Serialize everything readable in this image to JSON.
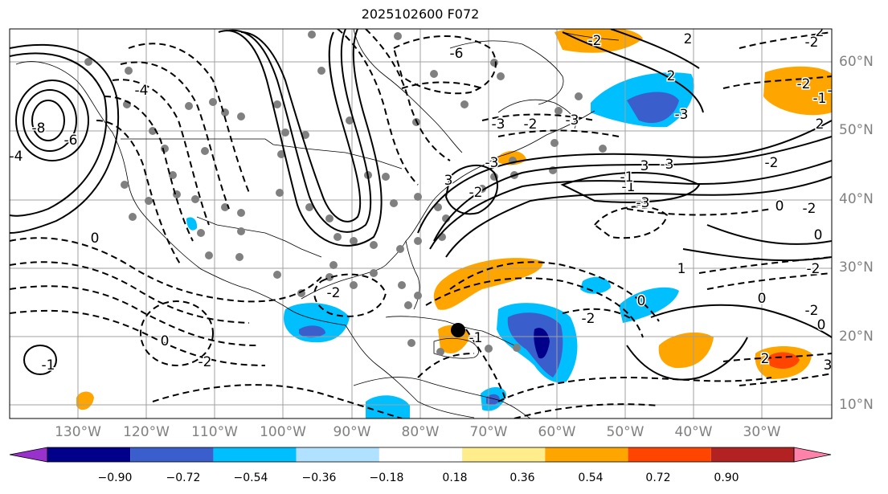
{
  "title": "2025102600 F072",
  "map": {
    "lon_range": [
      -142,
      -21
    ],
    "lat_range": [
      8,
      65
    ],
    "lat_labels": [
      "60°N",
      "50°N",
      "40°N",
      "30°N",
      "20°N",
      "10°N"
    ],
    "lon_labels": [
      "130°W",
      "120°W",
      "110°W",
      "100°W",
      "90°W",
      "80°W",
      "70°W",
      "60°W",
      "50°W",
      "40°W",
      "30°W"
    ],
    "contour_labels": [
      "-6",
      "-8",
      "-6",
      "-4",
      "-4",
      "-2",
      "-3",
      "-3",
      "-3",
      "-3",
      "-2",
      "2",
      "-3",
      "3",
      "-3",
      "-1",
      "3",
      "-2",
      "0",
      "0",
      "-2",
      "-1",
      "0",
      "-2",
      "-2",
      "0",
      "-2",
      "2",
      "-1",
      "2",
      "-2",
      "-2",
      "0",
      "-2",
      "-3",
      "-1",
      "0",
      "-1",
      "3",
      "2",
      "0",
      "1",
      "-2",
      "2",
      "-2",
      "-1"
    ],
    "colors": {
      "contour": "#000000",
      "grid": "#a0a0a0",
      "coast": "#000000",
      "dots": "#808080",
      "marker": "#000000"
    }
  },
  "colorbar": {
    "labels": [
      "−0.90",
      "−0.72",
      "−0.54",
      "−0.36",
      "−0.18",
      "0.18",
      "0.36",
      "0.54",
      "0.72",
      "0.90"
    ],
    "colors": [
      "#9932cc",
      "#00008b",
      "#3a5fcd",
      "#00bfff",
      "#b0e2ff",
      "#ffffff",
      "#ffec8b",
      "#ffa500",
      "#ff4500",
      "#b22222",
      "#ff82ab"
    ]
  }
}
